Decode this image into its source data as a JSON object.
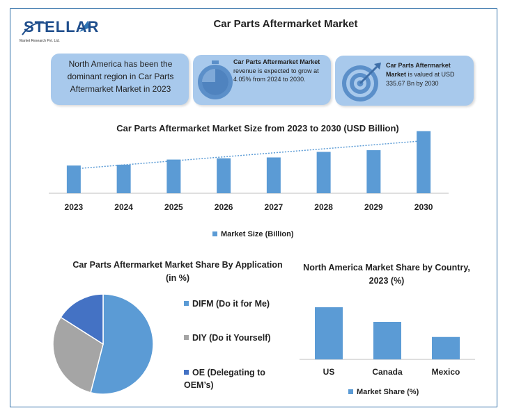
{
  "logo": {
    "text": "STELLAR",
    "subtext": "Market Research Pvt. Ltd."
  },
  "page_title": "Car Parts Aftermarket Market",
  "cards": [
    {
      "text": "North America has been the dominant region in Car Parts Aftermarket Market in 2023",
      "icon": ""
    },
    {
      "bold": "Car Parts Aftermarket Market",
      "text": " revenue is expected to grow at 4.05% from 2024 to 2030.",
      "icon": "stopwatch-icon"
    },
    {
      "bold": "Car Parts Aftermarket Market",
      "text": " is valued at USD 335.67 Bn by 2030",
      "icon": "target-icon"
    }
  ],
  "colors": {
    "bar": "#5b9bd5",
    "diy": "#a5a5a5",
    "oe": "#4472c4",
    "card": "#a8c9ec",
    "frame": "#2f6fa8"
  },
  "chart_data": [
    {
      "type": "bar",
      "title": "Car Parts Aftermarket Market Size from 2023 to 2030 (USD Billion)",
      "categories": [
        "2023",
        "2024",
        "2025",
        "2026",
        "2027",
        "2028",
        "2029",
        "2030"
      ],
      "series": [
        {
          "name": "Market Size (Billion)",
          "values": [
            255,
            257,
            269,
            272,
            274,
            287,
            291,
            335.67
          ]
        }
      ],
      "trendline": true,
      "xlabel": "",
      "ylabel": "",
      "ylim": [
        190,
        340
      ],
      "legend": "bottom"
    },
    {
      "type": "pie",
      "title": "Car Parts Aftermarket Market Share By Application  (in %)",
      "categories": [
        "DIFM (Do it for Me)",
        "DIY (Do it Yourself)",
        "OE (Delegating to OEM’s)"
      ],
      "values": [
        54,
        30,
        16
      ],
      "legend": "right"
    },
    {
      "type": "bar",
      "title": "North America Market Share by Country, 2023 (%)",
      "categories": [
        "US",
        "Canada",
        "Mexico"
      ],
      "series": [
        {
          "name": "Market Share (%)",
          "values": [
            100,
            72,
            43
          ]
        }
      ],
      "ylim": [
        0,
        100
      ],
      "legend": "bottom"
    }
  ]
}
